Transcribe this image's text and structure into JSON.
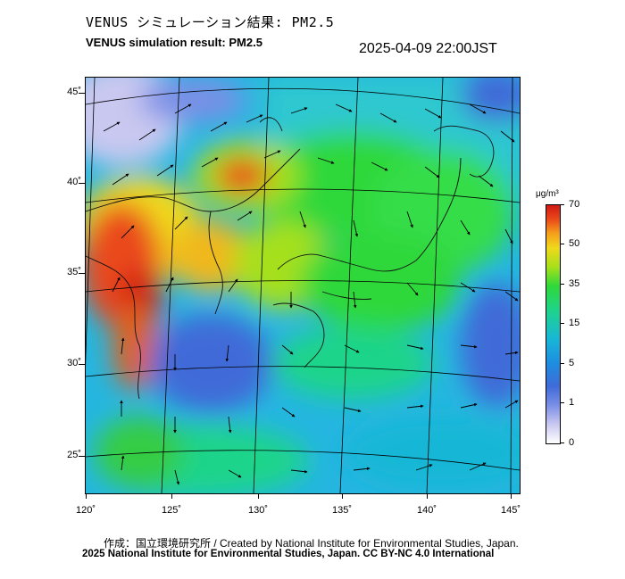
{
  "header": {
    "title_ja": "VENUS シミュレーション結果: PM2.5",
    "title_en": "VENUS simulation result: PM2.5",
    "timestamp": "2025-04-09 22:00JST"
  },
  "map": {
    "lat_labels": [
      "45˚",
      "40˚",
      "35˚",
      "30˚",
      "25˚"
    ],
    "lon_labels": [
      "120˚",
      "125˚",
      "130˚",
      "135˚",
      "140˚",
      "145˚"
    ],
    "field": "PM2.5 concentration with wind vectors",
    "colors": {
      "ocean_low": "#1c8fe0",
      "mid": "#2fd83a",
      "high": "#d11a14",
      "very_low": "#c9c8f0"
    }
  },
  "colorbar": {
    "unit": "μg/m³",
    "labels": [
      "70",
      "50",
      "35",
      "15",
      "5",
      "1",
      "0"
    ]
  },
  "credits": {
    "line1": "作成：国立環境研究所 / Created by National Institute for Environmental Studies, Japan.",
    "line2": "2025 National Institute for Environmental Studies, Japan. CC BY-NC 4.0 International"
  }
}
